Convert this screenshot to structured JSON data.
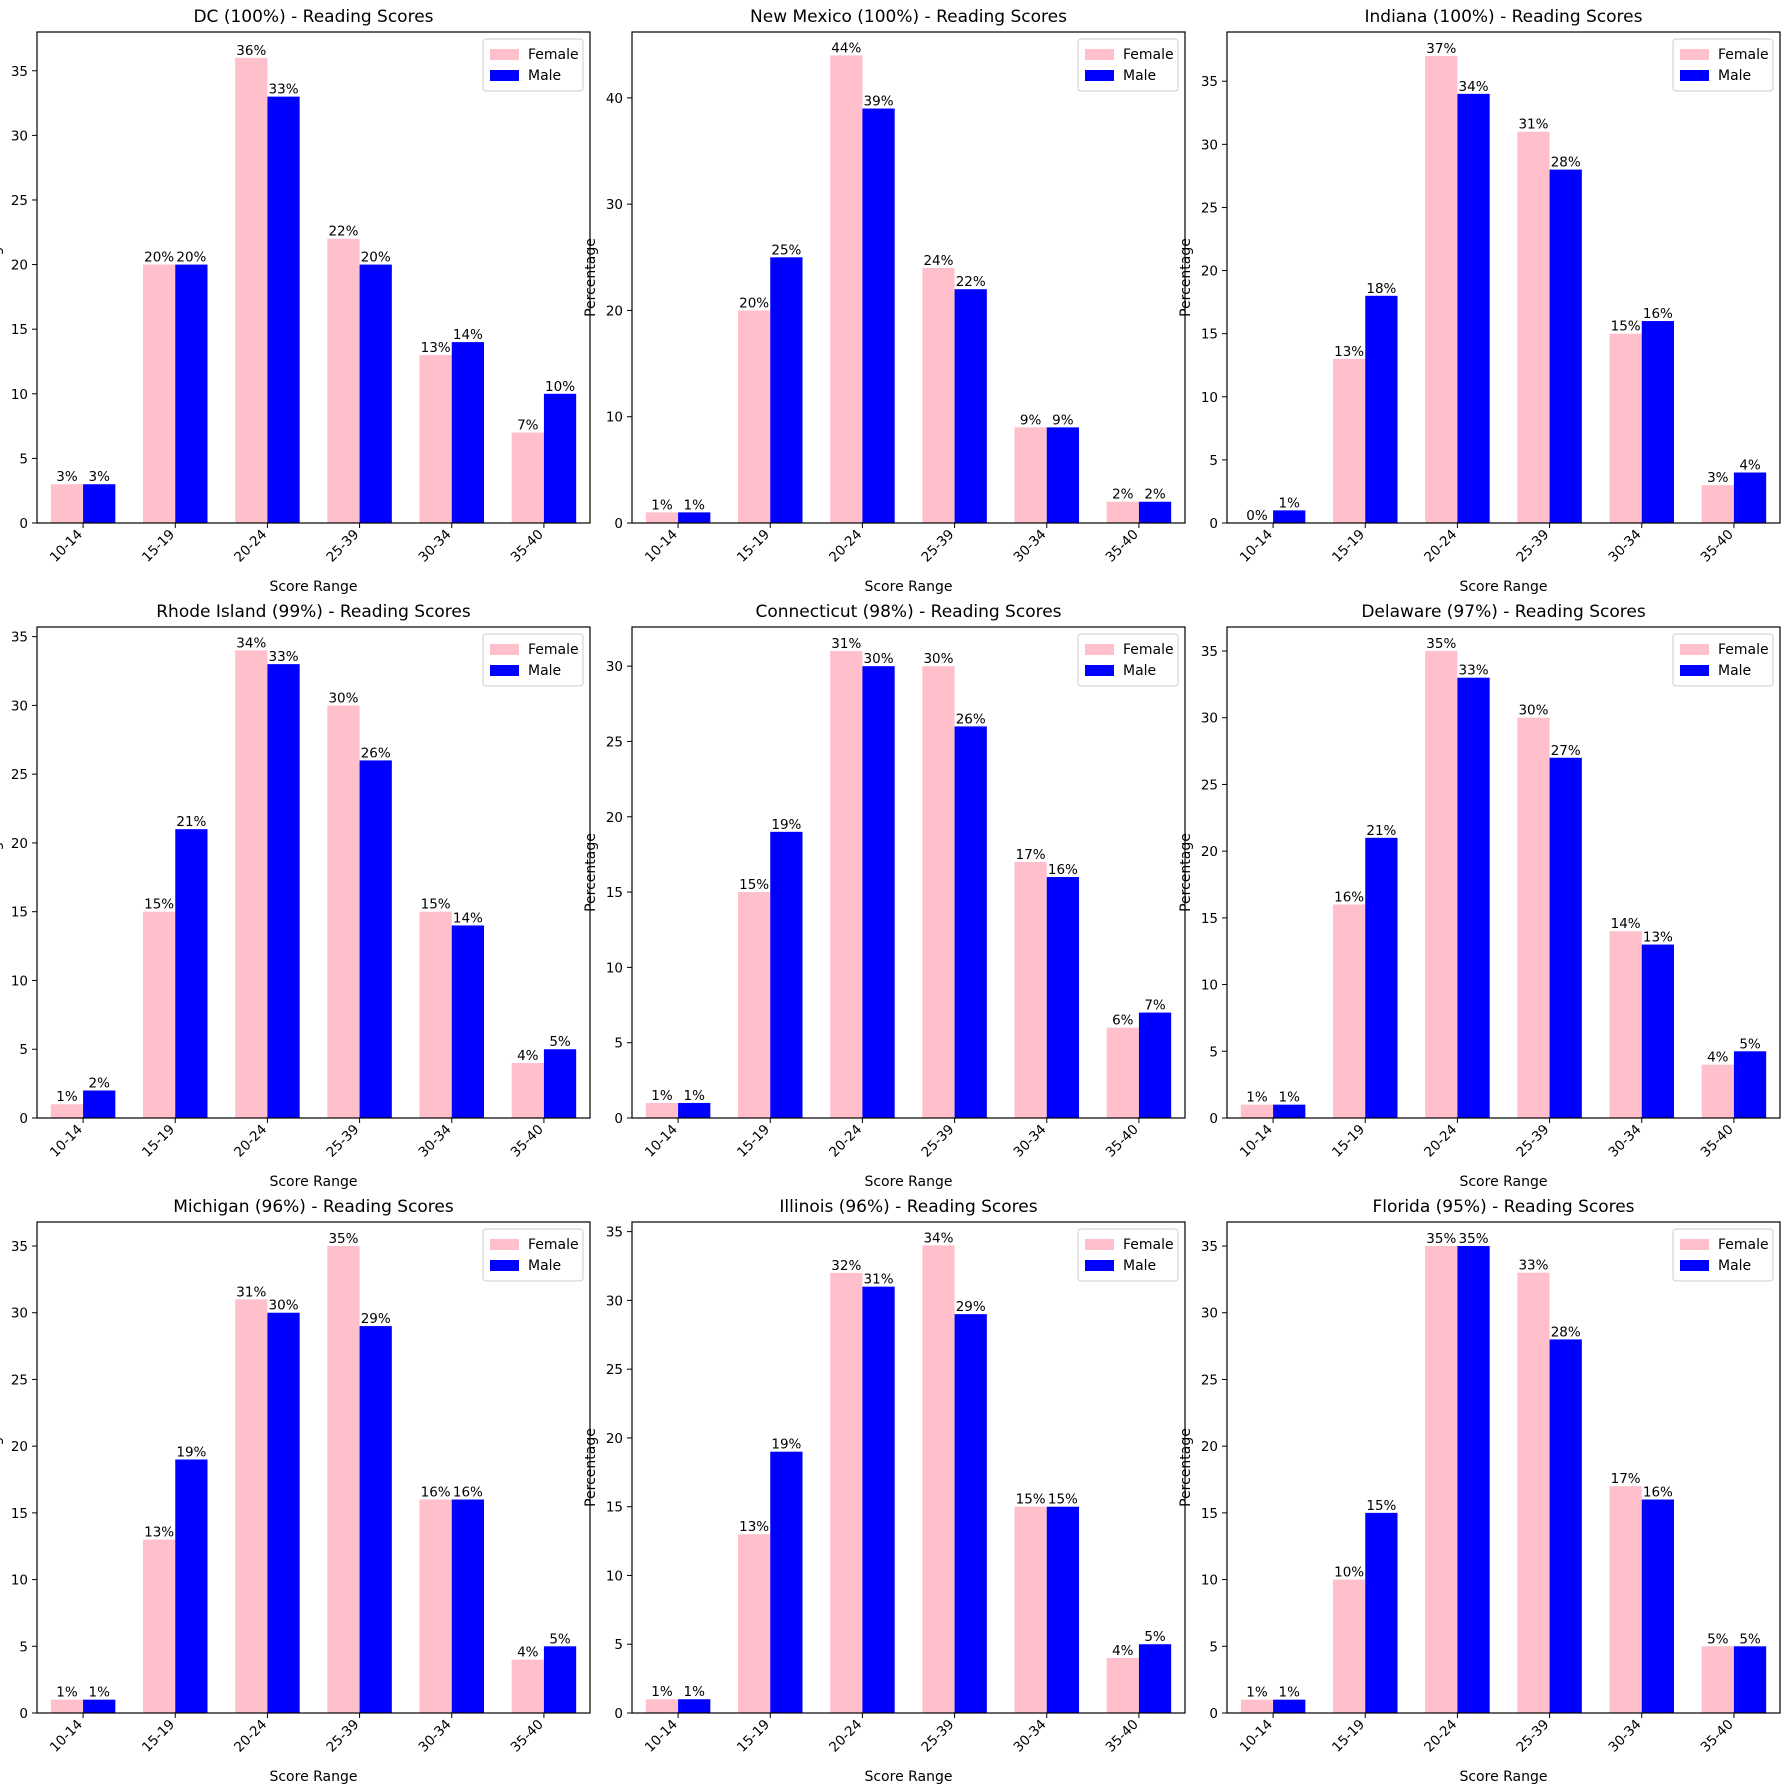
{
  "chart_data": [
    {
      "type": "bar",
      "title": "DC (100%) - Reading Scores",
      "xlabel": "Score Range",
      "ylabel": "Percentage",
      "categories": [
        "10-14",
        "15-19",
        "20-24",
        "25-39",
        "30-34",
        "35-40"
      ],
      "series": [
        {
          "name": "Female",
          "values": [
            3,
            20,
            36,
            22,
            13,
            7
          ]
        },
        {
          "name": "Male",
          "values": [
            3,
            20,
            33,
            20,
            14,
            10
          ]
        }
      ],
      "ylim": [
        0,
        38
      ],
      "yticks": [
        0,
        5,
        10,
        15,
        20,
        25,
        30,
        35
      ]
    },
    {
      "type": "bar",
      "title": "New Mexico (100%) - Reading Scores",
      "xlabel": "Score Range",
      "ylabel": "Percentage",
      "categories": [
        "10-14",
        "15-19",
        "20-24",
        "25-39",
        "30-34",
        "35-40"
      ],
      "series": [
        {
          "name": "Female",
          "values": [
            1,
            20,
            44,
            24,
            9,
            2
          ]
        },
        {
          "name": "Male",
          "values": [
            1,
            25,
            39,
            22,
            9,
            2
          ]
        }
      ],
      "ylim": [
        0,
        46.2
      ],
      "yticks": [
        0,
        10,
        20,
        30,
        40
      ]
    },
    {
      "type": "bar",
      "title": "Indiana (100%) - Reading Scores",
      "xlabel": "Score Range",
      "ylabel": "Percentage",
      "categories": [
        "10-14",
        "15-19",
        "20-24",
        "25-39",
        "30-34",
        "35-40"
      ],
      "series": [
        {
          "name": "Female",
          "values": [
            0,
            13,
            37,
            31,
            15,
            3
          ]
        },
        {
          "name": "Male",
          "values": [
            1,
            18,
            34,
            28,
            16,
            4
          ]
        }
      ],
      "ylim": [
        0,
        38.9
      ],
      "yticks": [
        0,
        5,
        10,
        15,
        20,
        25,
        30,
        35
      ]
    },
    {
      "type": "bar",
      "title": "Rhode Island (99%) - Reading Scores",
      "xlabel": "Score Range",
      "ylabel": "Percentage",
      "categories": [
        "10-14",
        "15-19",
        "20-24",
        "25-39",
        "30-34",
        "35-40"
      ],
      "series": [
        {
          "name": "Female",
          "values": [
            1,
            15,
            34,
            30,
            15,
            4
          ]
        },
        {
          "name": "Male",
          "values": [
            2,
            21,
            33,
            26,
            14,
            5
          ]
        }
      ],
      "ylim": [
        0,
        35.7
      ],
      "yticks": [
        0,
        5,
        10,
        15,
        20,
        25,
        30,
        35
      ]
    },
    {
      "type": "bar",
      "title": "Connecticut (98%) - Reading Scores",
      "xlabel": "Score Range",
      "ylabel": "Percentage",
      "categories": [
        "10-14",
        "15-19",
        "20-24",
        "25-39",
        "30-34",
        "35-40"
      ],
      "series": [
        {
          "name": "Female",
          "values": [
            1,
            15,
            31,
            30,
            17,
            6
          ]
        },
        {
          "name": "Male",
          "values": [
            1,
            19,
            30,
            26,
            16,
            7
          ]
        }
      ],
      "ylim": [
        0,
        32.6
      ],
      "yticks": [
        0,
        5,
        10,
        15,
        20,
        25,
        30
      ]
    },
    {
      "type": "bar",
      "title": "Delaware (97%) - Reading Scores",
      "xlabel": "Score Range",
      "ylabel": "Percentage",
      "categories": [
        "10-14",
        "15-19",
        "20-24",
        "25-39",
        "30-34",
        "35-40"
      ],
      "series": [
        {
          "name": "Female",
          "values": [
            1,
            16,
            35,
            30,
            14,
            4
          ]
        },
        {
          "name": "Male",
          "values": [
            1,
            21,
            33,
            27,
            13,
            5
          ]
        }
      ],
      "ylim": [
        0,
        36.8
      ],
      "yticks": [
        0,
        5,
        10,
        15,
        20,
        25,
        30,
        35
      ]
    },
    {
      "type": "bar",
      "title": "Michigan (96%) - Reading Scores",
      "xlabel": "Score Range",
      "ylabel": "Percentage",
      "categories": [
        "10-14",
        "15-19",
        "20-24",
        "25-39",
        "30-34",
        "35-40"
      ],
      "series": [
        {
          "name": "Female",
          "values": [
            1,
            13,
            31,
            35,
            16,
            4
          ]
        },
        {
          "name": "Male",
          "values": [
            1,
            19,
            30,
            29,
            16,
            5
          ]
        }
      ],
      "ylim": [
        0,
        36.8
      ],
      "yticks": [
        0,
        5,
        10,
        15,
        20,
        25,
        30,
        35
      ]
    },
    {
      "type": "bar",
      "title": "Illinois (96%) - Reading Scores",
      "xlabel": "Score Range",
      "ylabel": "Percentage",
      "categories": [
        "10-14",
        "15-19",
        "20-24",
        "25-39",
        "30-34",
        "35-40"
      ],
      "series": [
        {
          "name": "Female",
          "values": [
            1,
            13,
            32,
            34,
            15,
            4
          ]
        },
        {
          "name": "Male",
          "values": [
            1,
            19,
            31,
            29,
            15,
            5
          ]
        }
      ],
      "ylim": [
        0,
        35.7
      ],
      "yticks": [
        0,
        5,
        10,
        15,
        20,
        25,
        30,
        35
      ]
    },
    {
      "type": "bar",
      "title": "Florida (95%) - Reading Scores",
      "xlabel": "Score Range",
      "ylabel": "Percentage",
      "categories": [
        "10-14",
        "15-19",
        "20-24",
        "25-39",
        "30-34",
        "35-40"
      ],
      "series": [
        {
          "name": "Female",
          "values": [
            1,
            10,
            35,
            33,
            17,
            5
          ]
        },
        {
          "name": "Male",
          "values": [
            1,
            15,
            35,
            28,
            16,
            5
          ]
        }
      ],
      "ylim": [
        0,
        36.8
      ],
      "yticks": [
        0,
        5,
        10,
        15,
        20,
        25,
        30,
        35
      ]
    }
  ],
  "legend": {
    "placement": "top-right"
  },
  "colors": {
    "Female": "#ffc0cb",
    "Male": "#0000ff"
  },
  "label_suffix": "%"
}
